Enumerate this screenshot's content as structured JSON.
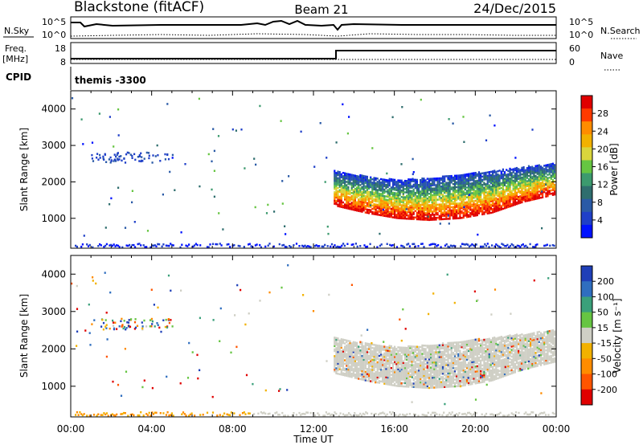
{
  "header": {
    "station": "Blackstone (fitACF)",
    "beam": "Beam 21",
    "date": "24/Dec/2015"
  },
  "noise_panel": {
    "left_label": "N.Sky",
    "right_label": "N.Search",
    "left_ticks": [
      "10^5",
      "10^0"
    ],
    "right_ticks": [
      "10^5",
      "10^0"
    ]
  },
  "freq_panel": {
    "left_label_1": "Freq.",
    "left_label_2": "[MHz]",
    "right_label": "Nave",
    "left_ticks": [
      "18",
      "8"
    ],
    "right_ticks": [
      "60",
      "0"
    ]
  },
  "cpid": {
    "label": "CPID",
    "value": "themis -3300"
  },
  "x_axis": {
    "title": "Time UT",
    "ticks": [
      "00:00",
      "04:00",
      "08:00",
      "12:00",
      "16:00",
      "20:00",
      "00:00"
    ],
    "range_hours": [
      0,
      24
    ]
  },
  "power_panel": {
    "ylabel": "Slant Range [km]",
    "yticks": [
      "4000",
      "3000",
      "2000",
      "1000"
    ],
    "colorbar_title": "Power [dB]",
    "colorbar_ticks": [
      "28",
      "24",
      "20",
      "16",
      "12",
      "8",
      "4"
    ],
    "colorbar_colors": [
      "#e00000",
      "#ff3a00",
      "#ff8c00",
      "#f2b100",
      "#d9d53c",
      "#66c542",
      "#3c9a6e",
      "#2f6e6e",
      "#2a5aa6",
      "#1f3fc8",
      "#0012ff"
    ]
  },
  "velocity_panel": {
    "ylabel": "Slant Range [km]",
    "yticks": [
      "4000",
      "3000",
      "2000",
      "1000"
    ],
    "colorbar_title": "Velocity [m s⁻¹]",
    "colorbar_ticks": [
      "200",
      "100",
      "50",
      "15",
      "-15",
      "-50",
      "-100",
      "-200"
    ],
    "colorbar_colors": [
      "#1f3fb8",
      "#2f6ebf",
      "#3aa07a",
      "#66c542",
      "#cfcfc5",
      "#f2b100",
      "#ff8c00",
      "#ff5500",
      "#e00000"
    ]
  },
  "chart_data": {
    "type": "heatmap",
    "x_unit": "hours UT",
    "y_unit": "slant range km",
    "xlim": [
      0,
      24
    ],
    "ylim": [
      180,
      4500
    ],
    "features": [
      {
        "name": "main_band",
        "t_start": 13.0,
        "t_end": 23.9,
        "range_low_km": [
          1350,
          1150,
          1000,
          950,
          1000,
          1150,
          1450,
          1650
        ],
        "range_high_km": [
          2300,
          2150,
          2050,
          2100,
          2200,
          2300,
          2400,
          2500
        ]
      },
      {
        "name": "early_cluster",
        "t_start": 1.0,
        "t_end": 5.0,
        "range_km": [
          2500,
          2800
        ]
      },
      {
        "name": "ground_scatter_strip",
        "t_start": 0.2,
        "t_end": 23.9,
        "range_km": [
          200,
          300
        ]
      }
    ]
  }
}
